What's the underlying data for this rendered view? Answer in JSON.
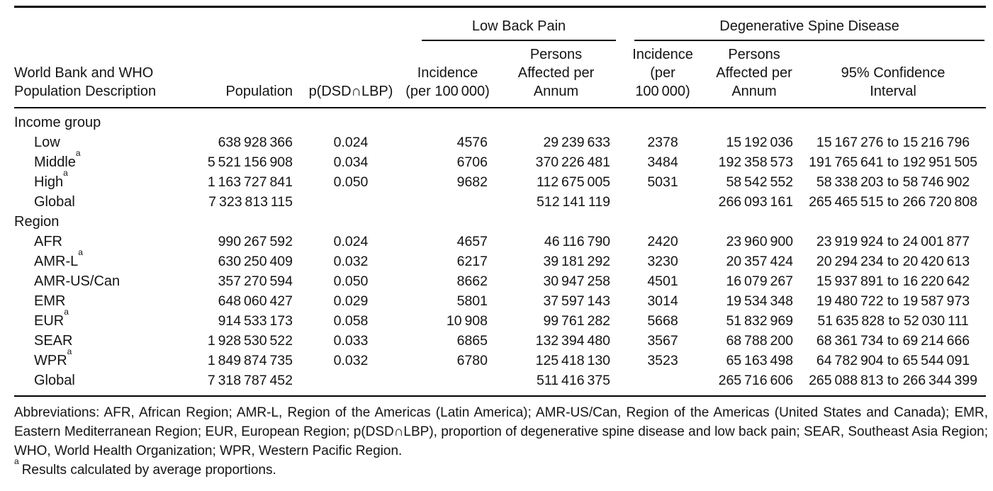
{
  "table": {
    "group_headers": {
      "lbp": "Low Back Pain",
      "dsd": "Degenerative Spine Disease"
    },
    "column_headers": {
      "description": "World Bank and WHO\nPopulation Description",
      "population": "Population",
      "p_dsd_lbp": "p(DSD∩LBP)",
      "lbp_incidence": "Incidence\n(per 100 000)",
      "lbp_persons": "Persons\nAffected per\nAnnum",
      "dsd_incidence": "Incidence\n(per\n100 000)",
      "dsd_persons": "Persons\nAffected per\nAnnum",
      "ci": "95% Confidence\nInterval"
    },
    "rows": [
      {
        "type": "section",
        "label": "Income group"
      },
      {
        "type": "data",
        "label": "Low",
        "sup": "",
        "cells": [
          "638 928 366",
          "0.024",
          "4576",
          "29 239 633",
          "2378",
          "15 192 036",
          "15 167 276 to 15 216 796"
        ]
      },
      {
        "type": "data",
        "label": "Middle",
        "sup": "a",
        "cells": [
          "5 521 156 908",
          "0.034",
          "6706",
          "370 226 481",
          "3484",
          "192 358 573",
          "191 765 641 to 192 951 505"
        ]
      },
      {
        "type": "data",
        "label": "High",
        "sup": "a",
        "cells": [
          "1 163 727 841",
          "0.050",
          "9682",
          "112 675 005",
          "5031",
          "58 542 552",
          "58 338 203 to 58 746 902"
        ]
      },
      {
        "type": "data",
        "label": "Global",
        "sup": "",
        "cells": [
          "7 323 813 115",
          "",
          "",
          "512 141 119",
          "",
          "266 093 161",
          "265 465 515 to 266 720 808"
        ]
      },
      {
        "type": "section",
        "label": "Region"
      },
      {
        "type": "data",
        "label": "AFR",
        "sup": "",
        "cells": [
          "990 267 592",
          "0.024",
          "4657",
          "46 116 790",
          "2420",
          "23 960 900",
          "23 919 924 to 24 001 877"
        ]
      },
      {
        "type": "data",
        "label": "AMR-L",
        "sup": "a",
        "cells": [
          "630 250 409",
          "0.032",
          "6217",
          "39 181 292",
          "3230",
          "20 357 424",
          "20 294 234 to 20 420 613"
        ]
      },
      {
        "type": "data",
        "label": "AMR-US/Can",
        "sup": "",
        "cells": [
          "357 270 594",
          "0.050",
          "8662",
          "30 947 258",
          "4501",
          "16 079 267",
          "15 937 891 to 16 220 642"
        ]
      },
      {
        "type": "data",
        "label": "EMR",
        "sup": "",
        "cells": [
          "648 060 427",
          "0.029",
          "5801",
          "37 597 143",
          "3014",
          "19 534 348",
          "19 480 722 to 19 587 973"
        ]
      },
      {
        "type": "data",
        "label": "EUR",
        "sup": "a",
        "cells": [
          "914 533 173",
          "0.058",
          "10 908",
          "99 761 282",
          "5668",
          "51 832 969",
          "51 635 828 to 52 030 111"
        ]
      },
      {
        "type": "data",
        "label": "SEAR",
        "sup": "",
        "cells": [
          "1 928 530 522",
          "0.033",
          "6865",
          "132 394 480",
          "3567",
          "68 788 200",
          "68 361 734 to 69 214 666"
        ]
      },
      {
        "type": "data",
        "label": "WPR",
        "sup": "a",
        "cells": [
          "1 849 874 735",
          "0.032",
          "6780",
          "125 418 130",
          "3523",
          "65 163 498",
          "64 782 904 to 65 544 091"
        ]
      },
      {
        "type": "data",
        "label": "Global",
        "sup": "",
        "cells": [
          "7 318 787 452",
          "",
          "",
          "511 416 375",
          "",
          "265 716 606",
          "265 088 813 to 266 344 399"
        ]
      }
    ]
  },
  "footnotes": {
    "abbreviations": "Abbreviations: AFR, African Region; AMR-L, Region of the Americas (Latin America); AMR-US/Can, Region of the Americas (United States and Canada); EMR, Eastern Mediterranean Region; EUR, European Region; p(DSD∩LBP), proportion of degenerative spine disease and low back pain; SEAR, Southeast Asia Region; WHO, World Health Organization; WPR, Western Pacific Region.",
    "note_a_marker": "a",
    "note_a": "Results calculated by average proportions."
  }
}
